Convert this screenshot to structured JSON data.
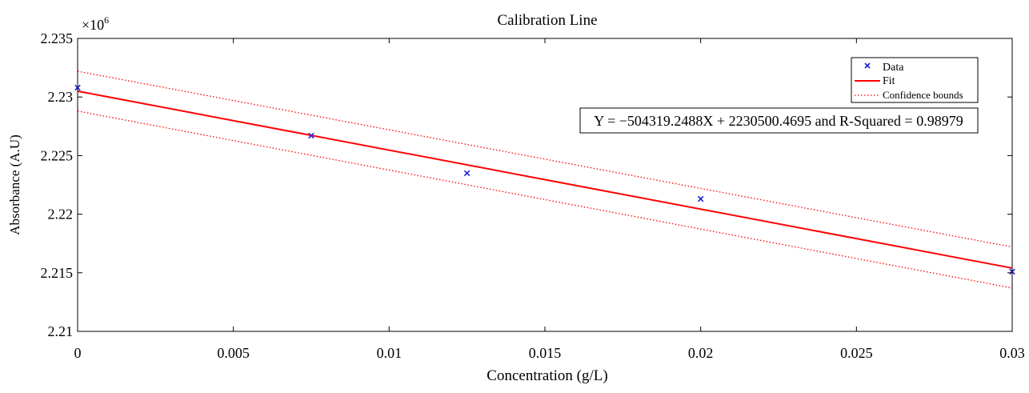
{
  "chart_data": {
    "type": "scatter",
    "title": "Calibration Line",
    "xlabel": "Concentration (g/L)",
    "ylabel": "Absorbance (A.U)",
    "y_exponent_label": "×10",
    "y_exponent_power": "6",
    "xlim": [
      0,
      0.03
    ],
    "ylim": [
      2.21,
      2.235
    ],
    "x_ticks": [
      0,
      0.005,
      0.01,
      0.015,
      0.02,
      0.025,
      0.03
    ],
    "x_tick_labels": [
      "0",
      "0.005",
      "0.01",
      "0.015",
      "0.02",
      "0.025",
      "0.03"
    ],
    "y_ticks": [
      2.21,
      2.215,
      2.22,
      2.225,
      2.23,
      2.235
    ],
    "y_tick_labels": [
      "2.21",
      "2.215",
      "2.22",
      "2.225",
      "2.23",
      "2.235"
    ],
    "grid": false,
    "legend_position": "top-right",
    "series": [
      {
        "name": "Data",
        "kind": "markers",
        "marker": "x",
        "color": "#1f1fd6",
        "x": [
          0,
          0.0075,
          0.0125,
          0.02,
          0.03
        ],
        "y": [
          2.2308,
          2.2267,
          2.2235,
          2.2213,
          2.2151
        ]
      },
      {
        "name": "Fit",
        "kind": "line",
        "style": "solid",
        "color": "#ff0000",
        "x": [
          0,
          0.03
        ],
        "y": [
          2.2305,
          2.2154
        ]
      },
      {
        "name": "Confidence bounds",
        "kind": "line",
        "style": "dotted",
        "color": "#ff0000",
        "x": [
          0,
          0.03
        ],
        "y": [
          2.2322,
          2.2172
        ]
      },
      {
        "name": "Confidence bounds",
        "kind": "line",
        "style": "dotted",
        "color": "#ff0000",
        "x": [
          0,
          0.03
        ],
        "y": [
          2.2288,
          2.2137
        ]
      }
    ],
    "legend": [
      {
        "label": "Data",
        "kind": "marker"
      },
      {
        "label": "Fit",
        "kind": "solid"
      },
      {
        "label": "Confidence bounds",
        "kind": "dotted"
      }
    ],
    "annotation": "Y = −504319.2488X + 2230500.4695 and R-Squared = 0.98979"
  }
}
